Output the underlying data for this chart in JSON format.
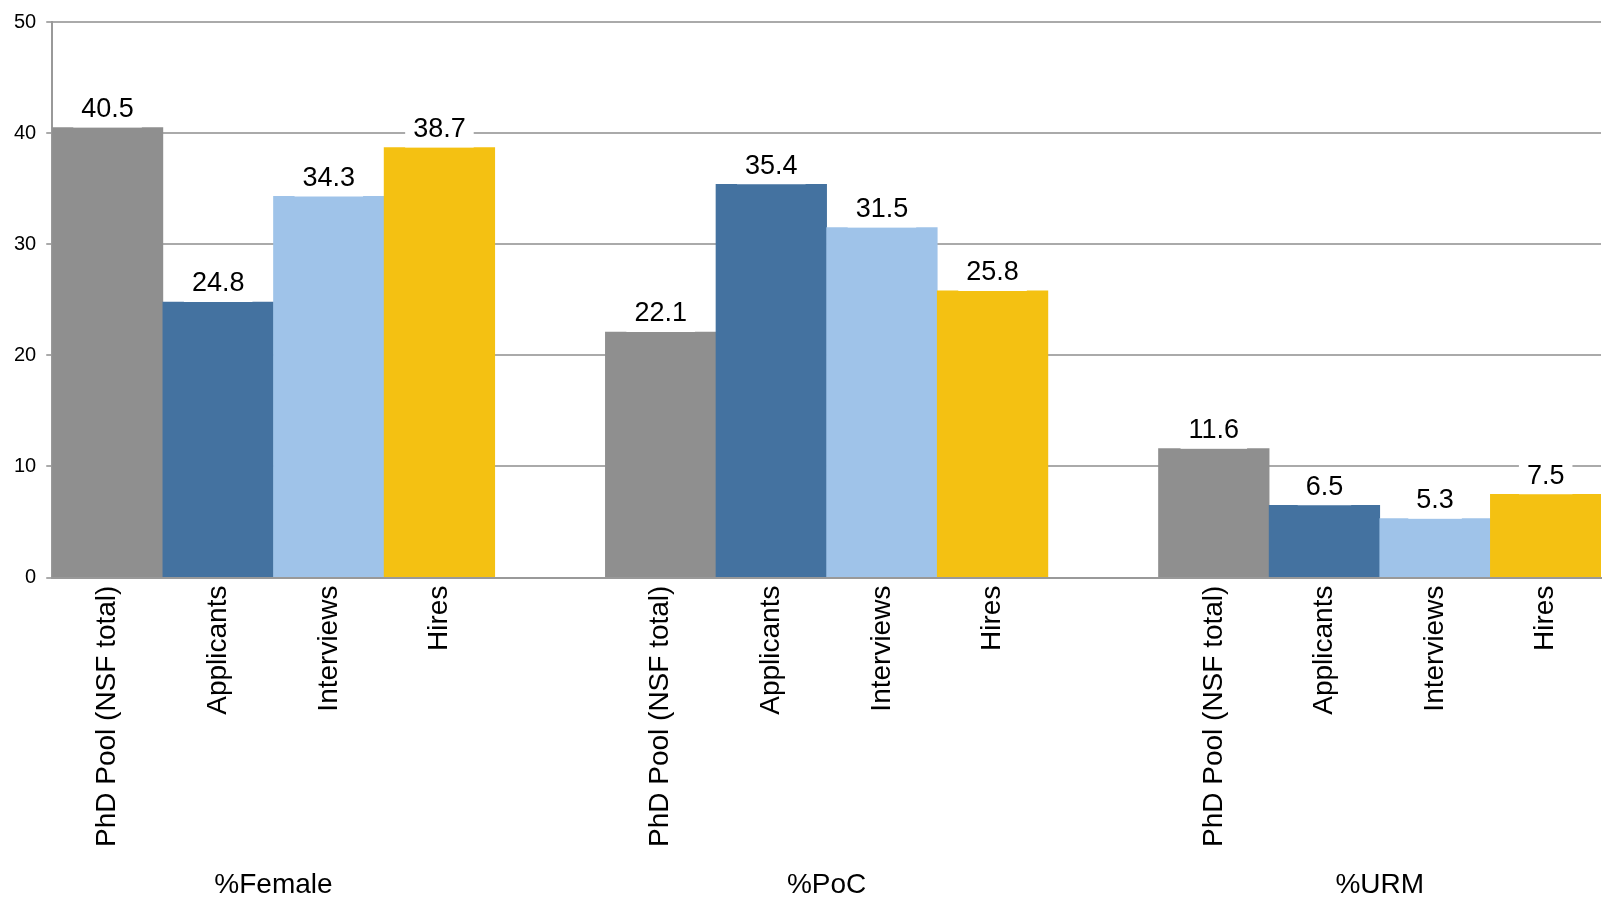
{
  "chart_data": {
    "type": "bar",
    "categories": [
      "PhD Pool (NSF total)",
      "Applicants",
      "Interviews",
      "Hires",
      null,
      "PhD Pool (NSF total)",
      "Applicants",
      "Interviews",
      "Hires",
      null,
      "PhD Pool (NSF total)",
      "Applicants",
      "Interviews",
      "Hires"
    ],
    "values": [
      40.5,
      24.8,
      34.3,
      38.7,
      null,
      22.1,
      35.4,
      31.5,
      25.8,
      null,
      11.6,
      6.5,
      5.3,
      7.5
    ],
    "colors": [
      "#8f8f8f",
      "#4472a0",
      "#9fc3e9",
      "#f4c112",
      null,
      "#8f8f8f",
      "#4472a0",
      "#9fc3e9",
      "#f4c112",
      null,
      "#8f8f8f",
      "#4472a0",
      "#9fc3e9",
      "#f4c112"
    ],
    "annotations": [
      "%Female",
      "%PoC",
      "%URM"
    ],
    "ylim": [
      0,
      50
    ],
    "yticks": [
      0,
      10,
      20,
      30,
      40,
      50
    ],
    "grid": "y",
    "legend": false,
    "data_labels": true
  }
}
